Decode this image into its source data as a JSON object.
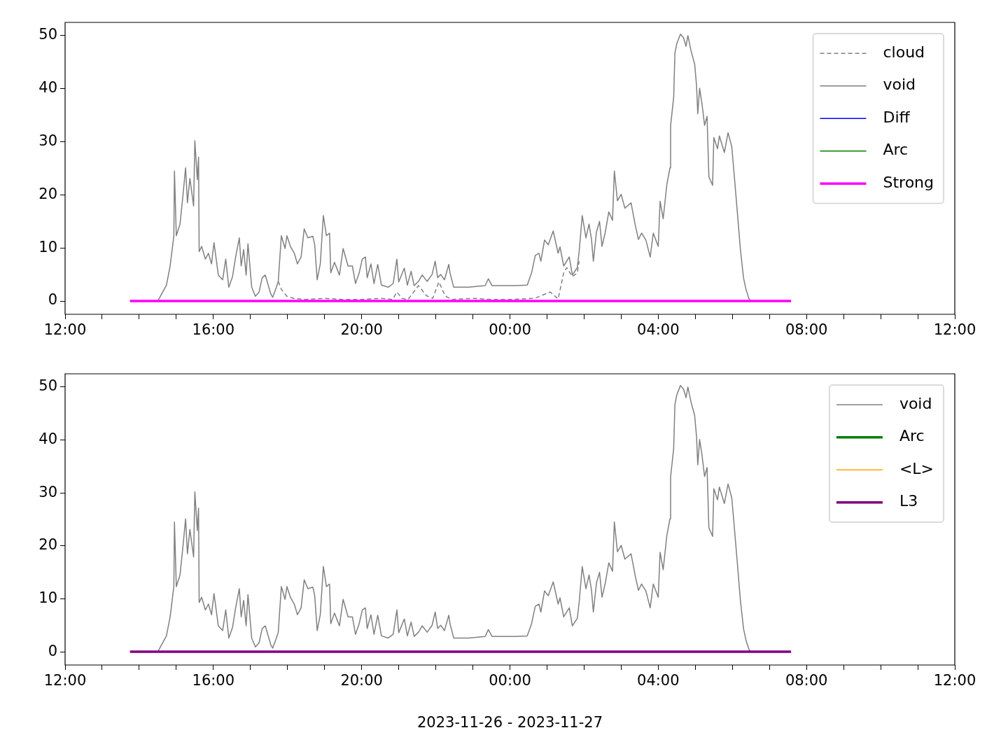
{
  "chart_data": [
    {
      "type": "line",
      "legend": "top right",
      "xlim": [
        "2023-11-26T12:00",
        "2023-11-27T12:00"
      ],
      "ylim": [
        -2.5,
        52.5
      ],
      "yticks": [
        0,
        10,
        20,
        30,
        40,
        50
      ],
      "xticks": [
        {
          "value": "2023-11-26T12:00",
          "label": "12:00"
        },
        {
          "value": "2023-11-26T13:00",
          "label": null
        },
        {
          "value": "2023-11-26T14:00",
          "label": null
        },
        {
          "value": "2023-11-26T15:00",
          "label": null
        },
        {
          "value": "2023-11-26T16:00",
          "label": "16:00"
        },
        {
          "value": "2023-11-26T17:00",
          "label": null
        },
        {
          "value": "2023-11-26T18:00",
          "label": null
        },
        {
          "value": "2023-11-26T19:00",
          "label": null
        },
        {
          "value": "2023-11-26T20:00",
          "label": "20:00"
        },
        {
          "value": "2023-11-26T21:00",
          "label": null
        },
        {
          "value": "2023-11-26T22:00",
          "label": null
        },
        {
          "value": "2023-11-26T23:00",
          "label": null
        },
        {
          "value": "2023-11-27T00:00",
          "label": "00:00"
        },
        {
          "value": "2023-11-27T01:00",
          "label": null
        },
        {
          "value": "2023-11-27T02:00",
          "label": null
        },
        {
          "value": "2023-11-27T03:00",
          "label": null
        },
        {
          "value": "2023-11-27T04:00",
          "label": "04:00"
        },
        {
          "value": "2023-11-27T05:00",
          "label": null
        },
        {
          "value": "2023-11-27T06:00",
          "label": null
        },
        {
          "value": "2023-11-27T07:00",
          "label": null
        },
        {
          "value": "2023-11-27T08:00",
          "label": "08:00"
        },
        {
          "value": "2023-11-27T09:00",
          "label": null
        },
        {
          "value": "2023-11-27T10:00",
          "label": null
        },
        {
          "value": "2023-11-27T11:00",
          "label": null
        },
        {
          "value": "2023-11-27T12:00",
          "label": "12:00"
        }
      ],
      "series": [
        {
          "name": "cloud",
          "color": "#808080",
          "line_style": "dashed",
          "x": [
            "2023-11-26T17:45",
            "2023-11-26T17:50",
            "2023-11-26T17:59",
            "2023-11-26T18:10",
            "2023-11-26T18:30",
            "2023-11-26T19:00",
            "2023-11-26T19:30",
            "2023-11-26T20:00",
            "2023-11-26T20:30",
            "2023-11-26T20:50",
            "2023-11-26T20:57",
            "2023-11-26T21:05",
            "2023-11-26T21:15",
            "2023-11-26T21:32",
            "2023-11-26T21:45",
            "2023-11-26T21:55",
            "2023-11-26T22:05",
            "2023-11-26T22:15",
            "2023-11-26T22:25",
            "2023-11-26T23:00",
            "2023-11-26T23:30",
            "2023-11-27T00:00",
            "2023-11-27T00:40",
            "2023-11-27T01:05",
            "2023-11-27T01:18",
            "2023-11-27T01:27",
            "2023-11-27T01:32",
            "2023-11-27T01:41",
            "2023-11-27T01:49",
            "2023-11-27T01:52"
          ],
          "values": [
            3.7,
            2.2,
            0.9,
            0.5,
            0.3,
            0.5,
            0.3,
            0.3,
            0.5,
            0.3,
            1.7,
            0.5,
            0.3,
            2.9,
            1,
            0.5,
            3.6,
            1,
            0.3,
            0.5,
            0.3,
            0.3,
            0.5,
            1.7,
            0.4,
            5.3,
            6.3,
            4.6,
            5.3,
            7.5
          ]
        },
        {
          "name": "void",
          "color": "#808080",
          "line_style": "solid",
          "x": [
            "2023-11-26T14:30",
            "2023-11-26T14:44",
            "2023-11-26T14:50",
            "2023-11-26T14:56",
            "2023-11-26T14:57",
            "2023-11-26T15:00",
            "2023-11-26T15:06",
            "2023-11-26T15:11",
            "2023-11-26T15:15",
            "2023-11-26T15:18",
            "2023-11-26T15:22",
            "2023-11-26T15:28",
            "2023-11-26T15:30",
            "2023-11-26T15:34",
            "2023-11-26T15:36",
            "2023-11-26T15:37",
            "2023-11-26T15:41",
            "2023-11-26T15:47",
            "2023-11-26T15:52",
            "2023-11-26T15:57",
            "2023-11-26T16:01",
            "2023-11-26T16:08",
            "2023-11-26T16:15",
            "2023-11-26T16:20",
            "2023-11-26T16:25",
            "2023-11-26T16:31",
            "2023-11-26T16:36",
            "2023-11-26T16:42",
            "2023-11-26T16:45",
            "2023-11-26T16:49",
            "2023-11-26T16:53",
            "2023-11-26T16:56",
            "2023-11-26T17:02",
            "2023-11-26T17:08",
            "2023-11-26T17:14",
            "2023-11-26T17:19",
            "2023-11-26T17:24",
            "2023-11-26T17:33",
            "2023-11-26T17:36",
            "2023-11-26T17:42",
            "2023-11-26T17:45",
            "2023-11-26T17:50",
            "2023-11-26T17:56",
            "2023-11-26T17:59",
            "2023-11-26T18:05",
            "2023-11-26T18:11",
            "2023-11-26T18:16",
            "2023-11-26T18:22",
            "2023-11-26T18:27",
            "2023-11-26T18:33",
            "2023-11-26T18:41",
            "2023-11-26T18:44",
            "2023-11-26T18:48",
            "2023-11-26T18:53",
            "2023-11-26T18:58",
            "2023-11-26T19:03",
            "2023-11-26T19:08",
            "2023-11-26T19:10",
            "2023-11-26T19:16",
            "2023-11-26T19:24",
            "2023-11-26T19:30",
            "2023-11-26T19:38",
            "2023-11-26T19:45",
            "2023-11-26T19:50",
            "2023-11-26T19:56",
            "2023-11-26T20:01",
            "2023-11-26T20:06",
            "2023-11-26T20:09",
            "2023-11-26T20:15",
            "2023-11-26T20:20",
            "2023-11-26T20:26",
            "2023-11-26T20:32",
            "2023-11-26T20:43",
            "2023-11-26T20:51",
            "2023-11-26T20:57",
            "2023-11-26T21:00",
            "2023-11-26T21:09",
            "2023-11-26T21:14",
            "2023-11-26T21:20",
            "2023-11-26T21:25",
            "2023-11-26T21:32",
            "2023-11-26T21:38",
            "2023-11-26T21:46",
            "2023-11-26T21:54",
            "2023-11-26T21:59",
            "2023-11-26T22:03",
            "2023-11-26T22:08",
            "2023-11-26T22:14",
            "2023-11-26T22:21",
            "2023-11-26T22:23",
            "2023-11-26T22:29",
            "2023-11-26T22:53",
            "2023-11-26T23:20",
            "2023-11-26T23:25",
            "2023-11-26T23:31",
            "2023-11-27T00:09",
            "2023-11-27T00:28",
            "2023-11-27T00:35",
            "2023-11-27T00:41",
            "2023-11-27T00:47",
            "2023-11-27T00:50",
            "2023-11-27T00:56",
            "2023-11-27T01:02",
            "2023-11-27T01:10",
            "2023-11-27T01:18",
            "2023-11-27T01:21",
            "2023-11-27T01:27",
            "2023-11-27T01:36",
            "2023-11-27T01:41",
            "2023-11-27T01:49",
            "2023-11-27T01:52",
            "2023-11-27T01:57",
            "2023-11-27T02:03",
            "2023-11-27T02:08",
            "2023-11-27T02:12",
            "2023-11-27T02:15",
            "2023-11-27T02:20",
            "2023-11-27T02:25",
            "2023-11-27T02:29",
            "2023-11-27T02:34",
            "2023-11-27T02:40",
            "2023-11-27T02:46",
            "2023-11-27T02:49",
            "2023-11-27T02:54",
            "2023-11-27T03:00",
            "2023-11-27T03:06",
            "2023-11-27T03:16",
            "2023-11-27T03:23",
            "2023-11-27T03:28",
            "2023-11-27T03:33",
            "2023-11-27T03:40",
            "2023-11-27T03:47",
            "2023-11-27T03:52",
            "2023-11-27T04:00",
            "2023-11-27T04:03",
            "2023-11-27T04:08",
            "2023-11-27T04:14",
            "2023-11-27T04:19",
            "2023-11-27T04:20",
            "2023-11-27T04:25",
            "2023-11-27T04:27",
            "2023-11-27T04:30",
            "2023-11-27T04:36",
            "2023-11-27T04:41",
            "2023-11-27T04:45",
            "2023-11-27T04:48",
            "2023-11-27T04:53",
            "2023-11-27T04:59",
            "2023-11-27T05:02",
            "2023-11-27T05:04",
            "2023-11-27T05:07",
            "2023-11-27T05:11",
            "2023-11-27T05:15",
            "2023-11-27T05:19",
            "2023-11-27T05:22",
            "2023-11-27T05:28",
            "2023-11-27T05:30",
            "2023-11-27T05:36",
            "2023-11-27T05:39",
            "2023-11-27T05:47",
            "2023-11-27T05:53",
            "2023-11-27T05:59",
            "2023-11-27T06:02",
            "2023-11-27T06:08",
            "2023-11-27T06:13",
            "2023-11-27T06:18",
            "2023-11-27T06:22",
            "2023-11-27T06:27",
            "2023-11-27T06:30"
          ],
          "values": [
            0,
            3,
            6.6,
            12.3,
            24.5,
            12.3,
            14.5,
            20.2,
            25.1,
            18.5,
            23.1,
            17.9,
            30.2,
            22.9,
            27.1,
            9.3,
            10.3,
            7.9,
            9,
            7,
            11,
            4.9,
            4,
            7.9,
            2.6,
            4.6,
            8.3,
            11.9,
            6.6,
            9.7,
            4.9,
            10.8,
            2.6,
            0.9,
            1.7,
            4.4,
            4.9,
            1.3,
            0.7,
            2.6,
            3.7,
            12.3,
            9.9,
            12.3,
            10.2,
            9,
            7,
            8.3,
            13.6,
            11.9,
            12.2,
            10.6,
            4,
            7,
            16.1,
            12.3,
            12.8,
            5.3,
            7.3,
            4.9,
            9.9,
            6.6,
            6.6,
            3.3,
            5.3,
            7.9,
            8.3,
            4.4,
            7,
            3.3,
            6.9,
            3,
            2.6,
            3.3,
            7.9,
            3.6,
            6.2,
            3,
            5.6,
            2.9,
            3.7,
            4.9,
            3.7,
            5,
            7.5,
            4.4,
            5,
            4,
            6.9,
            5.3,
            2.6,
            2.6,
            2.9,
            4.2,
            2.9,
            2.9,
            3,
            5.3,
            8.6,
            9,
            7.5,
            11.5,
            10.6,
            13.2,
            9,
            10.2,
            6.6,
            8.3,
            4.9,
            6.3,
            9.3,
            16.1,
            11.9,
            14.5,
            11.6,
            7.5,
            13,
            15,
            10.3,
            12.8,
            16.8,
            15.2,
            24.5,
            18.9,
            20.1,
            17.5,
            18.5,
            14.2,
            11.6,
            12.8,
            11.5,
            8.3,
            12.8,
            10.3,
            18.8,
            15.5,
            22,
            25.1,
            33,
            38.4,
            46.7,
            48.5,
            50.3,
            49.6,
            48,
            50,
            47.2,
            44.6,
            40.6,
            35.3,
            40.1,
            37,
            33.1,
            34.8,
            23.4,
            21.8,
            30.8,
            28.7,
            31.1,
            28,
            31.7,
            29.1,
            25.1,
            16.8,
            9.7,
            4.4,
            2.2,
            0.4,
            0
          ]
        },
        {
          "name": "Diff",
          "color": "#0000ff",
          "line_style": "solid"
        },
        {
          "name": "Arc",
          "color": "#008000",
          "line_style": "solid"
        },
        {
          "name": "Strong",
          "color": "#ff00ff",
          "line_style": "solid",
          "x": [
            "2023-11-26T13:45",
            "2023-11-27T07:35"
          ],
          "values": [
            0,
            0
          ]
        }
      ]
    },
    {
      "type": "line",
      "legend": "top right",
      "xlabel": "2023-11-26 - 2023-11-27",
      "xlim": [
        "2023-11-26T12:00",
        "2023-11-27T12:00"
      ],
      "ylim": [
        -2.5,
        52.5
      ],
      "yticks": [
        0,
        10,
        20,
        30,
        40,
        50
      ],
      "xticks": [
        {
          "value": "2023-11-26T12:00",
          "label": "12:00"
        },
        {
          "value": "2023-11-26T13:00",
          "label": null
        },
        {
          "value": "2023-11-26T14:00",
          "label": null
        },
        {
          "value": "2023-11-26T15:00",
          "label": null
        },
        {
          "value": "2023-11-26T16:00",
          "label": "16:00"
        },
        {
          "value": "2023-11-26T17:00",
          "label": null
        },
        {
          "value": "2023-11-26T18:00",
          "label": null
        },
        {
          "value": "2023-11-26T19:00",
          "label": null
        },
        {
          "value": "2023-11-26T20:00",
          "label": "20:00"
        },
        {
          "value": "2023-11-26T21:00",
          "label": null
        },
        {
          "value": "2023-11-26T22:00",
          "label": null
        },
        {
          "value": "2023-11-26T23:00",
          "label": null
        },
        {
          "value": "2023-11-27T00:00",
          "label": "00:00"
        },
        {
          "value": "2023-11-27T01:00",
          "label": null
        },
        {
          "value": "2023-11-27T02:00",
          "label": null
        },
        {
          "value": "2023-11-27T03:00",
          "label": null
        },
        {
          "value": "2023-11-27T04:00",
          "label": "04:00"
        },
        {
          "value": "2023-11-27T05:00",
          "label": null
        },
        {
          "value": "2023-11-27T06:00",
          "label": null
        },
        {
          "value": "2023-11-27T07:00",
          "label": null
        },
        {
          "value": "2023-11-27T08:00",
          "label": "08:00"
        },
        {
          "value": "2023-11-27T09:00",
          "label": null
        },
        {
          "value": "2023-11-27T10:00",
          "label": null
        },
        {
          "value": "2023-11-27T11:00",
          "label": null
        },
        {
          "value": "2023-11-27T12:00",
          "label": "12:00"
        }
      ],
      "series": [
        {
          "name": "void",
          "color": "#808080",
          "line_style": "solid",
          "x": [
            "2023-11-26T14:30",
            "2023-11-26T14:44",
            "2023-11-26T14:50",
            "2023-11-26T14:56",
            "2023-11-26T14:57",
            "2023-11-26T15:00",
            "2023-11-26T15:06",
            "2023-11-26T15:11",
            "2023-11-26T15:15",
            "2023-11-26T15:18",
            "2023-11-26T15:22",
            "2023-11-26T15:28",
            "2023-11-26T15:30",
            "2023-11-26T15:34",
            "2023-11-26T15:36",
            "2023-11-26T15:37",
            "2023-11-26T15:41",
            "2023-11-26T15:47",
            "2023-11-26T15:52",
            "2023-11-26T15:57",
            "2023-11-26T16:01",
            "2023-11-26T16:08",
            "2023-11-26T16:15",
            "2023-11-26T16:20",
            "2023-11-26T16:25",
            "2023-11-26T16:31",
            "2023-11-26T16:36",
            "2023-11-26T16:42",
            "2023-11-26T16:45",
            "2023-11-26T16:49",
            "2023-11-26T16:53",
            "2023-11-26T16:56",
            "2023-11-26T17:02",
            "2023-11-26T17:08",
            "2023-11-26T17:14",
            "2023-11-26T17:19",
            "2023-11-26T17:24",
            "2023-11-26T17:33",
            "2023-11-26T17:36",
            "2023-11-26T17:42",
            "2023-11-26T17:45",
            "2023-11-26T17:50",
            "2023-11-26T17:56",
            "2023-11-26T17:59",
            "2023-11-26T18:05",
            "2023-11-26T18:11",
            "2023-11-26T18:16",
            "2023-11-26T18:22",
            "2023-11-26T18:27",
            "2023-11-26T18:33",
            "2023-11-26T18:41",
            "2023-11-26T18:44",
            "2023-11-26T18:48",
            "2023-11-26T18:53",
            "2023-11-26T18:58",
            "2023-11-26T19:03",
            "2023-11-26T19:08",
            "2023-11-26T19:10",
            "2023-11-26T19:16",
            "2023-11-26T19:24",
            "2023-11-26T19:30",
            "2023-11-26T19:38",
            "2023-11-26T19:45",
            "2023-11-26T19:50",
            "2023-11-26T19:56",
            "2023-11-26T20:01",
            "2023-11-26T20:06",
            "2023-11-26T20:09",
            "2023-11-26T20:15",
            "2023-11-26T20:20",
            "2023-11-26T20:26",
            "2023-11-26T20:32",
            "2023-11-26T20:43",
            "2023-11-26T20:51",
            "2023-11-26T20:57",
            "2023-11-26T21:00",
            "2023-11-26T21:09",
            "2023-11-26T21:14",
            "2023-11-26T21:20",
            "2023-11-26T21:25",
            "2023-11-26T21:32",
            "2023-11-26T21:38",
            "2023-11-26T21:46",
            "2023-11-26T21:54",
            "2023-11-26T21:59",
            "2023-11-26T22:03",
            "2023-11-26T22:08",
            "2023-11-26T22:14",
            "2023-11-26T22:21",
            "2023-11-26T22:23",
            "2023-11-26T22:29",
            "2023-11-26T22:53",
            "2023-11-26T23:20",
            "2023-11-26T23:25",
            "2023-11-26T23:31",
            "2023-11-27T00:09",
            "2023-11-27T00:28",
            "2023-11-27T00:35",
            "2023-11-27T00:41",
            "2023-11-27T00:47",
            "2023-11-27T00:50",
            "2023-11-27T00:56",
            "2023-11-27T01:02",
            "2023-11-27T01:10",
            "2023-11-27T01:18",
            "2023-11-27T01:21",
            "2023-11-27T01:27",
            "2023-11-27T01:36",
            "2023-11-27T01:41",
            "2023-11-27T01:49",
            "2023-11-27T01:52",
            "2023-11-27T01:57",
            "2023-11-27T02:03",
            "2023-11-27T02:08",
            "2023-11-27T02:12",
            "2023-11-27T02:15",
            "2023-11-27T02:20",
            "2023-11-27T02:25",
            "2023-11-27T02:29",
            "2023-11-27T02:34",
            "2023-11-27T02:40",
            "2023-11-27T02:46",
            "2023-11-27T02:49",
            "2023-11-27T02:54",
            "2023-11-27T03:00",
            "2023-11-27T03:06",
            "2023-11-27T03:16",
            "2023-11-27T03:23",
            "2023-11-27T03:28",
            "2023-11-27T03:33",
            "2023-11-27T03:40",
            "2023-11-27T03:47",
            "2023-11-27T03:52",
            "2023-11-27T04:00",
            "2023-11-27T04:03",
            "2023-11-27T04:08",
            "2023-11-27T04:14",
            "2023-11-27T04:19",
            "2023-11-27T04:20",
            "2023-11-27T04:25",
            "2023-11-27T04:27",
            "2023-11-27T04:30",
            "2023-11-27T04:36",
            "2023-11-27T04:41",
            "2023-11-27T04:45",
            "2023-11-27T04:48",
            "2023-11-27T04:53",
            "2023-11-27T04:59",
            "2023-11-27T05:02",
            "2023-11-27T05:04",
            "2023-11-27T05:07",
            "2023-11-27T05:11",
            "2023-11-27T05:15",
            "2023-11-27T05:19",
            "2023-11-27T05:22",
            "2023-11-27T05:28",
            "2023-11-27T05:30",
            "2023-11-27T05:36",
            "2023-11-27T05:39",
            "2023-11-27T05:47",
            "2023-11-27T05:53",
            "2023-11-27T05:59",
            "2023-11-27T06:02",
            "2023-11-27T06:08",
            "2023-11-27T06:13",
            "2023-11-27T06:18",
            "2023-11-27T06:22",
            "2023-11-27T06:27",
            "2023-11-27T06:30"
          ],
          "values": [
            0,
            3,
            6.6,
            12.3,
            24.5,
            12.3,
            14.5,
            20.2,
            25.1,
            18.5,
            23.1,
            17.9,
            30.2,
            22.9,
            27.1,
            9.3,
            10.3,
            7.9,
            9,
            7,
            11,
            4.9,
            4,
            7.9,
            2.6,
            4.6,
            8.3,
            11.9,
            6.6,
            9.7,
            4.9,
            10.8,
            2.6,
            0.9,
            1.7,
            4.4,
            4.9,
            1.3,
            0.7,
            2.6,
            3.7,
            12.3,
            9.9,
            12.3,
            10.2,
            9,
            7,
            8.3,
            13.6,
            11.9,
            12.2,
            10.6,
            4,
            7,
            16.1,
            12.3,
            12.8,
            5.3,
            7.3,
            4.9,
            9.9,
            6.6,
            6.6,
            3.3,
            5.3,
            7.9,
            8.3,
            4.4,
            7,
            3.3,
            6.9,
            3,
            2.6,
            3.3,
            7.9,
            3.6,
            6.2,
            3,
            5.6,
            2.9,
            3.7,
            4.9,
            3.7,
            5,
            7.5,
            4.4,
            5,
            4,
            6.9,
            5.3,
            2.6,
            2.6,
            2.9,
            4.2,
            2.9,
            2.9,
            3,
            5.3,
            8.6,
            9,
            7.5,
            11.5,
            10.6,
            13.2,
            9,
            10.2,
            6.6,
            8.3,
            4.9,
            6.3,
            9.3,
            16.1,
            11.9,
            14.5,
            11.6,
            7.5,
            13,
            15,
            10.3,
            12.8,
            16.8,
            15.2,
            24.5,
            18.9,
            20.1,
            17.5,
            18.5,
            14.2,
            11.6,
            12.8,
            11.5,
            8.3,
            12.8,
            10.3,
            18.8,
            15.5,
            22,
            25.1,
            33,
            38.4,
            46.7,
            48.5,
            50.3,
            49.6,
            48,
            50,
            47.2,
            44.6,
            40.6,
            35.3,
            40.1,
            37,
            33.1,
            34.8,
            23.4,
            21.8,
            30.8,
            28.7,
            31.1,
            28,
            31.7,
            29.1,
            25.1,
            16.8,
            9.7,
            4.4,
            2.2,
            0.4,
            0
          ]
        },
        {
          "name": "Arc",
          "color": "#008000",
          "line_style": "solid"
        },
        {
          "name": "<L>",
          "color": "#ffa500",
          "line_style": "solid"
        },
        {
          "name": "L3",
          "color": "#800080",
          "line_style": "solid",
          "x": [
            "2023-11-26T13:45",
            "2023-11-27T07:35"
          ],
          "values": [
            0,
            0
          ]
        }
      ]
    }
  ]
}
